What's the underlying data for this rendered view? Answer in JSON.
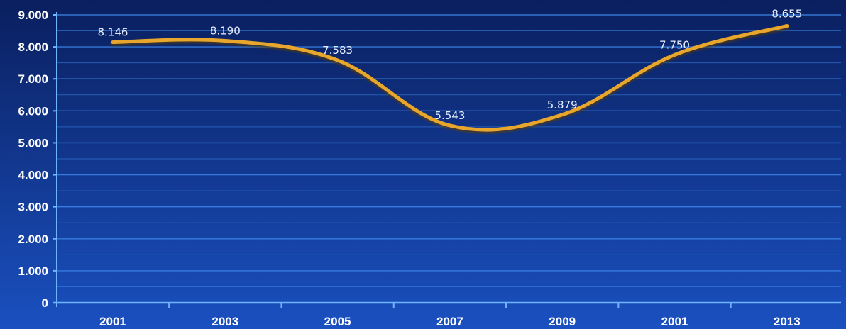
{
  "chart_data": {
    "type": "line",
    "categories": [
      "2001",
      "2003",
      "2005",
      "2007",
      "2009",
      "2001",
      "2013"
    ],
    "series": [
      {
        "values": [
          8146,
          8190,
          7583,
          5543,
          5879,
          7750,
          8655
        ],
        "data_labels": [
          "8.146",
          "8.190",
          "7.583",
          "5.543",
          "5.879",
          "7.750",
          "8.655"
        ]
      }
    ],
    "y_ticks": [
      {
        "value": 0,
        "label": "0"
      },
      {
        "value": 1000,
        "label": "1.000"
      },
      {
        "value": 2000,
        "label": "2.000"
      },
      {
        "value": 3000,
        "label": "3.000"
      },
      {
        "value": 4000,
        "label": "4.000"
      },
      {
        "value": 5000,
        "label": "5.000"
      },
      {
        "value": 6000,
        "label": "6.000"
      },
      {
        "value": 7000,
        "label": "7.000"
      },
      {
        "value": 8000,
        "label": "8.000"
      },
      {
        "value": 9000,
        "label": "9.000"
      }
    ],
    "ylim": [
      0,
      9000
    ],
    "grid": true,
    "legend": "none",
    "title": "",
    "xlabel": "",
    "ylabel": ""
  },
  "colors": {
    "background_top": "#0a1f5e",
    "background_bottom": "#1a50c0",
    "gridline": "#3d86e8",
    "axis": "#6fb4ff",
    "line": "#e8a72c",
    "line_shadow": "#5a3a00",
    "tick_text": "#ffffff",
    "data_label_text": "#e6efff"
  }
}
